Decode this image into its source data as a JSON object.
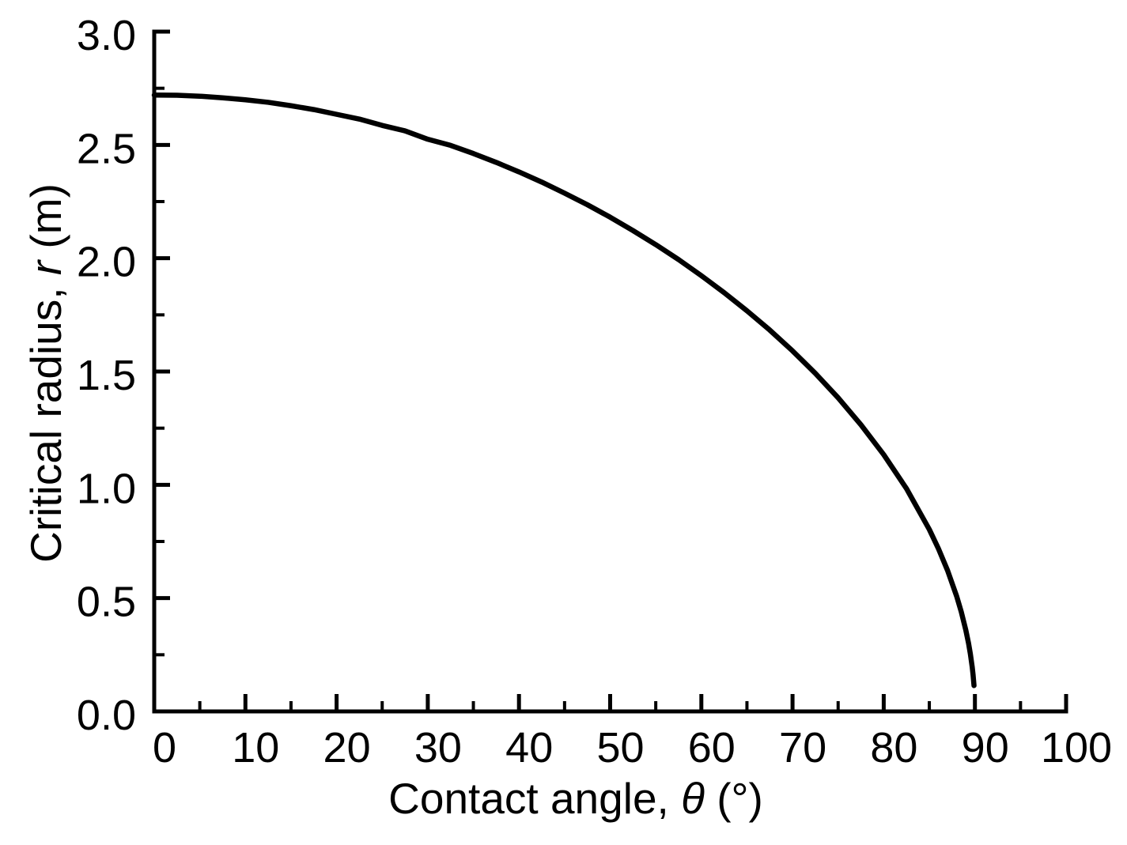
{
  "figure": {
    "background": "#ffffff",
    "axis_color": "#000000",
    "curve_color": "#000000",
    "text_color": "#000000"
  },
  "chart_data": {
    "type": "line",
    "title": "",
    "xlabel_prefix": "Contact angle, ",
    "xlabel_symbol": "θ",
    "xlabel_suffix": " (°)",
    "ylabel_prefix": "Critical radius, ",
    "ylabel_symbol": "r",
    "ylabel_suffix": " (m)",
    "xlim": [
      0,
      100
    ],
    "ylim": [
      0.0,
      3.0
    ],
    "grid": false,
    "legend": false,
    "x_major_ticks": [
      0,
      10,
      20,
      30,
      40,
      50,
      60,
      70,
      80,
      90,
      100
    ],
    "x_tick_labels": [
      "0",
      "10",
      "20",
      "30",
      "40",
      "50",
      "60",
      "70",
      "80",
      "90",
      "100"
    ],
    "x_minor_ticks": [
      5,
      15,
      25,
      35,
      45,
      55,
      65,
      75,
      85,
      95
    ],
    "y_major_ticks": [
      0.0,
      0.5,
      1.0,
      1.5,
      2.0,
      2.5,
      3.0
    ],
    "y_tick_labels": [
      "0.0",
      "0.5",
      "1.0",
      "1.5",
      "2.0",
      "2.5",
      "3.0"
    ],
    "y_minor_ticks": [
      0.25,
      0.75,
      1.25,
      1.75,
      2.25,
      2.75
    ],
    "series": [
      {
        "name": "critical-radius-vs-contact-angle",
        "x": [
          0,
          2.5,
          5,
          7.5,
          10,
          12.5,
          15,
          17.5,
          20,
          22.5,
          25,
          27.5,
          30,
          32.5,
          35,
          37.5,
          40,
          42.5,
          45,
          47.5,
          50,
          52.5,
          55,
          57.5,
          60,
          62.5,
          65,
          67.5,
          70,
          72.5,
          75,
          77.5,
          80,
          82.5,
          85,
          86,
          87,
          88,
          88.5,
          89,
          89.3,
          89.5,
          89.7,
          89.8,
          89.9
        ],
        "y": [
          2.72,
          2.719,
          2.715,
          2.708,
          2.699,
          2.688,
          2.673,
          2.656,
          2.635,
          2.614,
          2.586,
          2.562,
          2.525,
          2.498,
          2.462,
          2.423,
          2.381,
          2.336,
          2.287,
          2.236,
          2.181,
          2.122,
          2.06,
          1.994,
          1.923,
          1.848,
          1.768,
          1.683,
          1.591,
          1.492,
          1.384,
          1.265,
          1.133,
          0.983,
          0.803,
          0.718,
          0.622,
          0.508,
          0.44,
          0.359,
          0.301,
          0.254,
          0.197,
          0.161,
          0.114
        ]
      }
    ]
  }
}
